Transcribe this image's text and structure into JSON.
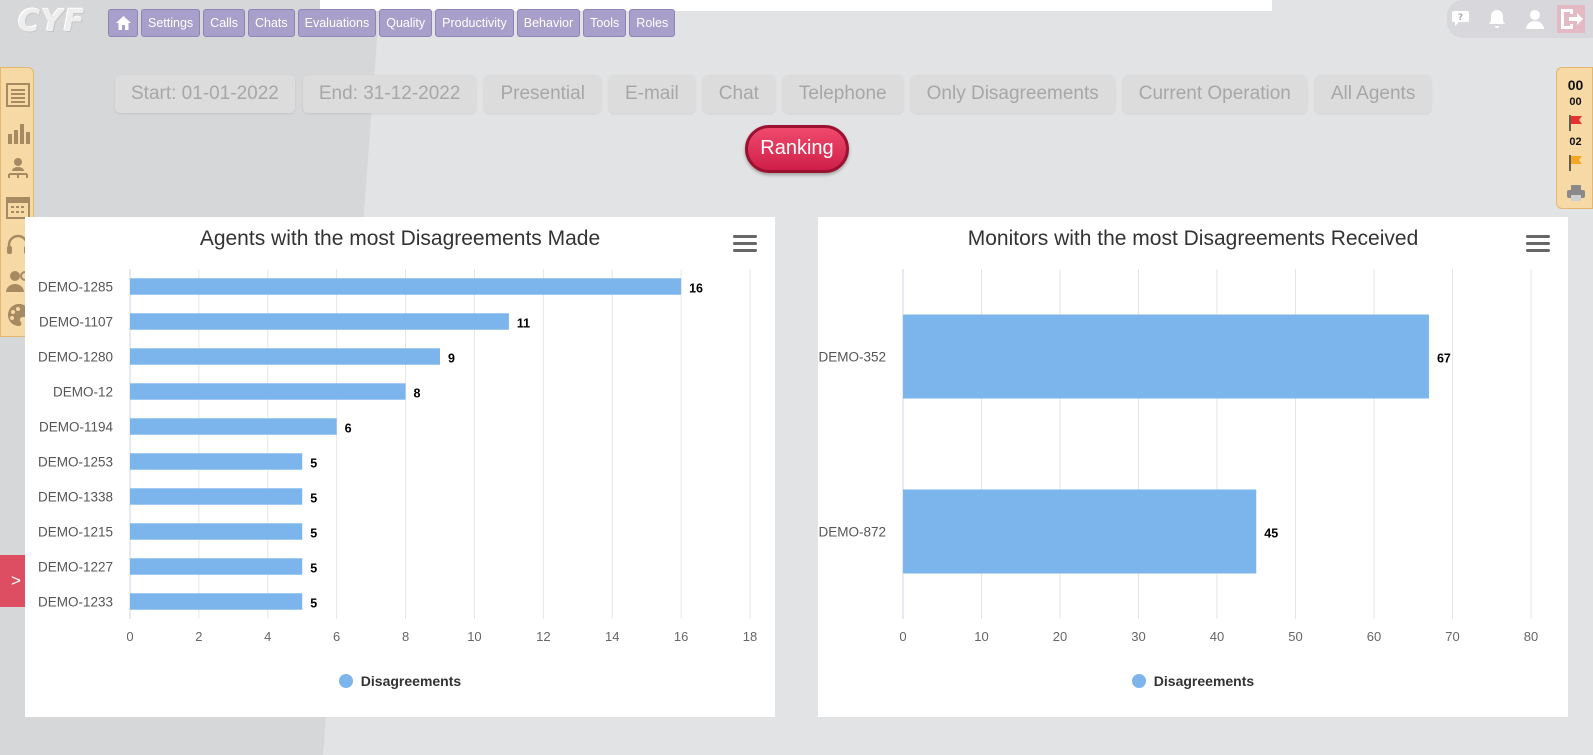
{
  "header": {
    "logo": "CYF",
    "nav": [
      {
        "label": "Settings"
      },
      {
        "label": "Calls"
      },
      {
        "label": "Chats"
      },
      {
        "label": "Evaluations"
      },
      {
        "label": "Quality"
      },
      {
        "label": "Productivity"
      },
      {
        "label": "Behavior"
      },
      {
        "label": "Tools"
      },
      {
        "label": "Roles"
      }
    ],
    "icons": [
      "help-chat-icon",
      "bell-icon",
      "user-icon",
      "logout-icon"
    ]
  },
  "filters": [
    {
      "label": "Start: 01-01-2022"
    },
    {
      "label": "End: 31-12-2022"
    },
    {
      "label": "Presential"
    },
    {
      "label": "E-mail"
    },
    {
      "label": "Chat"
    },
    {
      "label": "Telephone"
    },
    {
      "label": "Only Disagreements"
    },
    {
      "label": "Current Operation"
    },
    {
      "label": "All Agents"
    }
  ],
  "ranking_button": "Ranking",
  "side_tools": [
    "list-icon",
    "bar-chart-icon",
    "org-chart-icon",
    "calendar-icon",
    "headset-icon",
    "agent-settings-icon",
    "palette-icon"
  ],
  "right_panel": {
    "count_top": "00",
    "count_red": "00",
    "count_orange": "02"
  },
  "expand_tab": ">",
  "colors": {
    "bar": "#7cb5ec",
    "nav": "#a99fcb",
    "ranking": "#dd2d56",
    "expand_tab": "#dd4e63"
  },
  "chart_data": [
    {
      "type": "bar",
      "orientation": "horizontal",
      "title": "Agents with the most Disagreements Made",
      "categories": [
        "DEMO-1285",
        "DEMO-1107",
        "DEMO-1280",
        "DEMO-12",
        "DEMO-1194",
        "DEMO-1253",
        "DEMO-1338",
        "DEMO-1215",
        "DEMO-1227",
        "DEMO-1233"
      ],
      "series": [
        {
          "name": "Disagreements",
          "values": [
            16,
            11,
            9,
            8,
            6,
            5,
            5,
            5,
            5,
            5
          ]
        }
      ],
      "xlim": [
        0,
        18
      ],
      "ticks": [
        0,
        2,
        4,
        6,
        8,
        10,
        12,
        14,
        16,
        18
      ],
      "grid": true,
      "legend": "bottom-center"
    },
    {
      "type": "bar",
      "orientation": "horizontal",
      "title": "Monitors with the most Disagreements Received",
      "categories": [
        "DEMO-352",
        "DEMO-872"
      ],
      "series": [
        {
          "name": "Disagreements",
          "values": [
            67,
            45
          ]
        }
      ],
      "xlim": [
        0,
        80
      ],
      "ticks": [
        0,
        10,
        20,
        30,
        40,
        50,
        60,
        70,
        80
      ],
      "grid": true,
      "legend": "bottom-center"
    }
  ]
}
